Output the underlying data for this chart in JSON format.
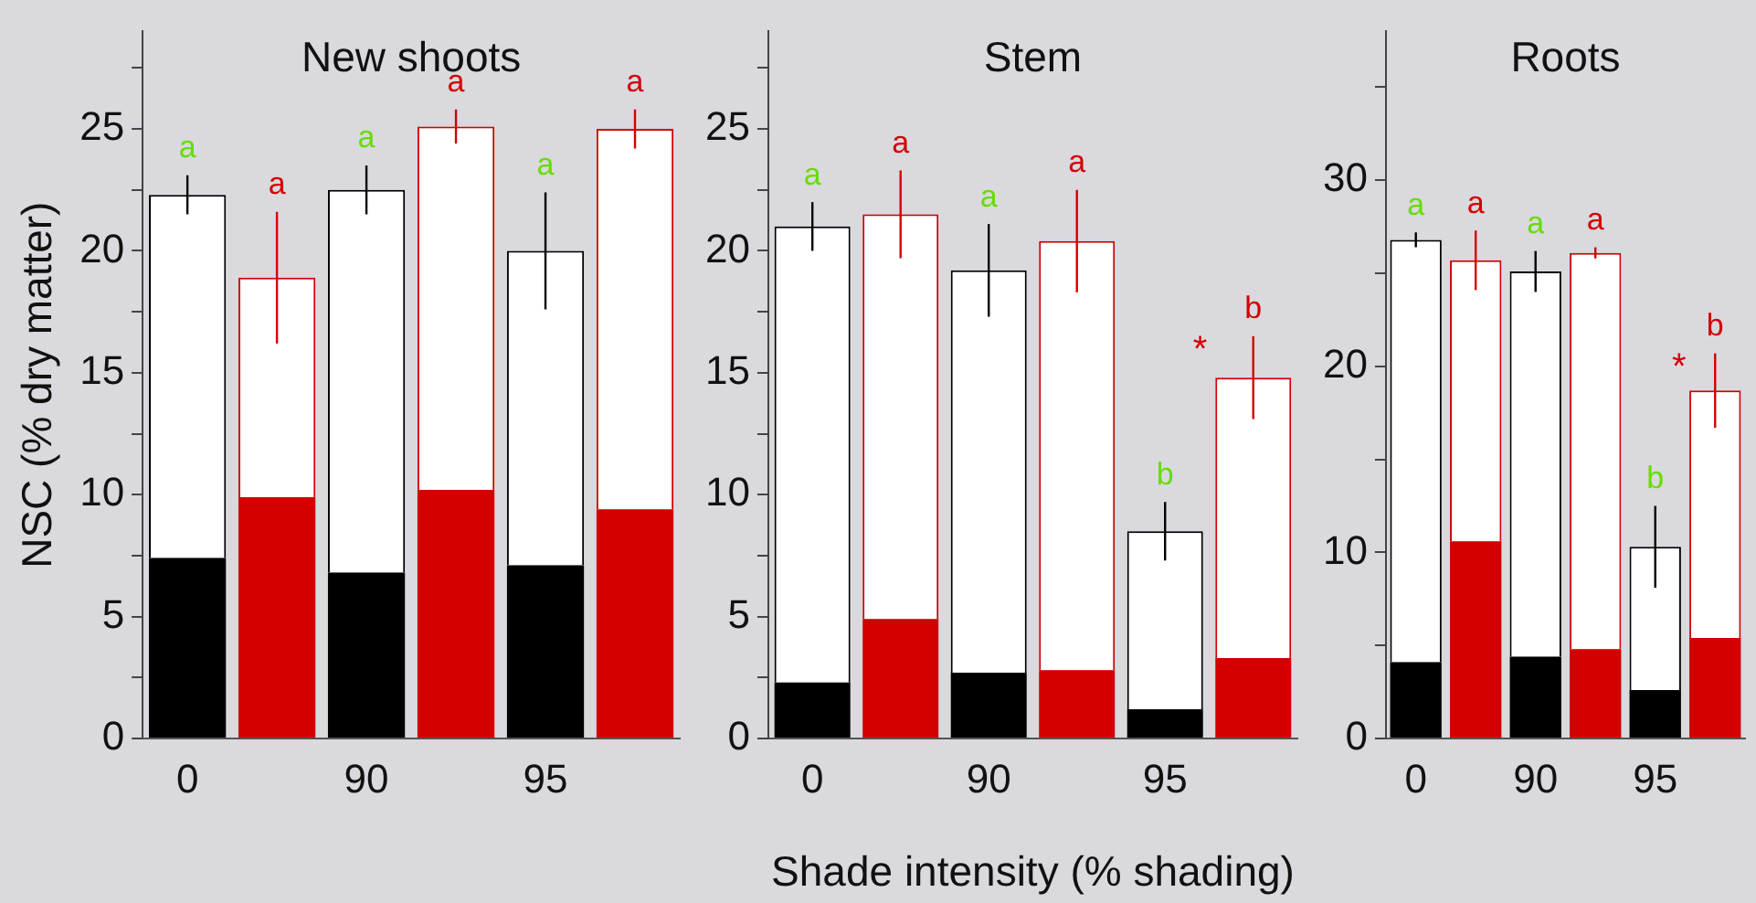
{
  "chart_data": [
    {
      "type": "bar",
      "title": "New shoots",
      "ylabel": "NSC (% dry matter)",
      "categories": [
        "0",
        null,
        "90",
        null,
        "95",
        null
      ],
      "stacked": true,
      "ylim": [
        0,
        29
      ],
      "yticks": [
        0,
        {
          "value": 2.5,
          "label": null
        },
        5,
        {
          "value": 7.5,
          "label": null
        },
        10,
        {
          "value": 12.5,
          "label": null
        },
        15,
        {
          "value": 17.5,
          "label": null
        },
        20,
        {
          "value": 22.5,
          "label": null
        },
        25,
        {
          "value": 27.5,
          "label": null
        }
      ],
      "series": [
        {
          "colors": [
            "#000000",
            "#d40000",
            "#000000",
            "#d40000",
            "#000000",
            "#d40000"
          ],
          "values": [
            7.4,
            9.9,
            6.8,
            10.2,
            7.1,
            9.4
          ]
        },
        {
          "color": "#ffffff",
          "values": [
            14.9,
            9.0,
            15.7,
            14.9,
            12.9,
            15.6
          ],
          "errors": [
            0.8,
            2.7,
            1.0,
            0.7,
            2.4,
            0.8
          ],
          "value_labels": [
            "a",
            "a",
            "a",
            "a",
            "a",
            "a"
          ]
        }
      ]
    },
    {
      "type": "bar",
      "title": "Stem",
      "xlabel": "Shade intensity (% shading)",
      "categories": [
        "0",
        null,
        "90",
        null,
        "95",
        null
      ],
      "stacked": true,
      "ylim": [
        0,
        29
      ],
      "yticks": [
        0,
        {
          "value": 2.5,
          "label": null
        },
        5,
        {
          "value": 7.5,
          "label": null
        },
        10,
        {
          "value": 12.5,
          "label": null
        },
        15,
        {
          "value": 17.5,
          "label": null
        },
        20,
        {
          "value": 22.5,
          "label": null
        },
        25,
        {
          "value": 27.5,
          "label": null
        }
      ],
      "series": [
        {
          "colors": [
            "#000000",
            "#d40000",
            "#000000",
            "#d40000",
            "#000000",
            "#d40000"
          ],
          "values": [
            2.3,
            4.9,
            2.7,
            2.8,
            1.2,
            3.3
          ]
        },
        {
          "color": "#ffffff",
          "values": [
            18.7,
            16.6,
            16.5,
            17.6,
            7.3,
            11.5
          ],
          "errors": [
            1.0,
            1.8,
            1.9,
            2.1,
            1.2,
            1.7
          ],
          "value_labels": [
            "a",
            "a",
            "a",
            "a",
            "b",
            "b"
          ]
        }
      ],
      "annotations": [
        "*"
      ]
    },
    {
      "type": "bar",
      "title": "Roots",
      "categories": [
        "0",
        null,
        "90",
        null,
        "95",
        null
      ],
      "stacked": true,
      "ylim": [
        0,
        38
      ],
      "yticks": [
        0,
        {
          "value": 5,
          "label": null
        },
        10,
        {
          "value": 15,
          "label": null
        },
        20,
        {
          "value": 25,
          "label": null
        },
        30,
        {
          "value": 35,
          "label": null
        }
      ],
      "series": [
        {
          "colors": [
            "#000000",
            "#d40000",
            "#000000",
            "#d40000",
            "#000000",
            "#d40000"
          ],
          "values": [
            4.1,
            10.6,
            4.4,
            4.8,
            2.6,
            5.4
          ]
        },
        {
          "color": "#ffffff",
          "values": [
            22.7,
            15.1,
            20.7,
            21.3,
            7.7,
            13.3
          ],
          "errors": [
            0.4,
            1.6,
            1.1,
            0.3,
            2.2,
            2.0
          ],
          "value_labels": [
            "a",
            "a",
            "a",
            "a",
            "b",
            "b"
          ]
        }
      ],
      "annotations": [
        "*"
      ]
    }
  ]
}
